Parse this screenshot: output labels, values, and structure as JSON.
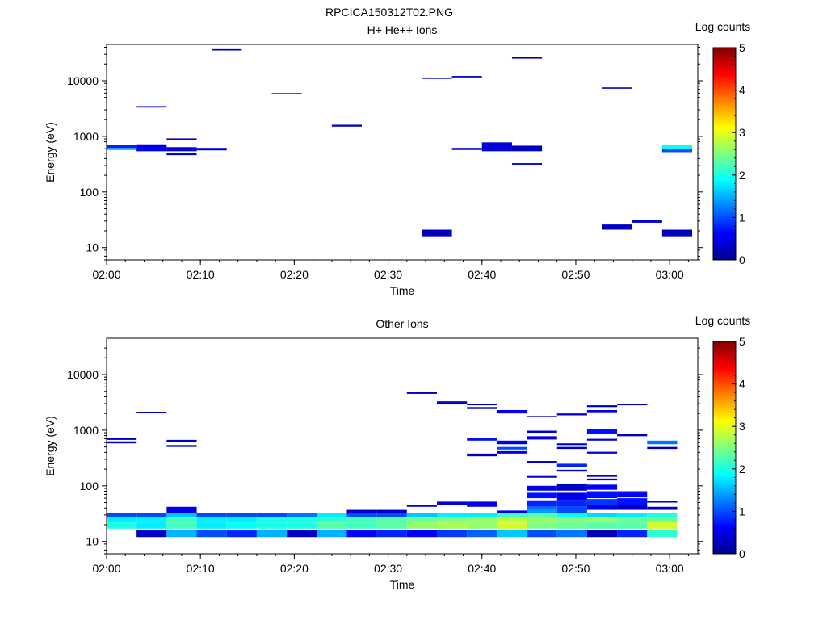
{
  "figure": {
    "title": "RPCICA150312T02.PNG"
  },
  "chart_data": [
    {
      "type": "heatmap",
      "title": "H+ He++ Ions",
      "xlabel": "Time",
      "ylabel": "Energy (eV)",
      "x_ticks": [
        "02:00",
        "02:10",
        "02:20",
        "02:30",
        "02:40",
        "02:50",
        "03:00"
      ],
      "x_range_min": [
        0,
        63
      ],
      "y_scale": "log",
      "y_ticks": [
        "10",
        "100",
        "1000",
        "10000"
      ],
      "y_range": [
        6,
        45000
      ],
      "colorbar": {
        "label": "Log counts",
        "range": [
          0,
          5
        ],
        "ticks": [
          "0",
          "1",
          "2",
          "3",
          "4",
          "5"
        ]
      },
      "cells": [
        [
          0,
          3.2,
          620,
          690,
          0.8
        ],
        [
          0,
          3.2,
          570,
          620,
          1.4
        ],
        [
          3.2,
          6.4,
          3300,
          3500,
          0.3
        ],
        [
          3.2,
          6.4,
          540,
          720,
          0.5
        ],
        [
          6.4,
          9.6,
          860,
          920,
          0.3
        ],
        [
          6.4,
          9.6,
          540,
          640,
          0.4
        ],
        [
          6.4,
          9.6,
          460,
          500,
          0.5
        ],
        [
          9.6,
          12.8,
          560,
          620,
          0.4
        ],
        [
          11.2,
          14.4,
          35000,
          37000,
          0.3
        ],
        [
          17.6,
          20.8,
          5700,
          6000,
          0.3
        ],
        [
          24,
          27.2,
          1500,
          1620,
          0.3
        ],
        [
          33.6,
          36.8,
          10800,
          11400,
          0.3
        ],
        [
          33.6,
          36.8,
          16,
          21,
          0.25
        ],
        [
          36.8,
          40,
          11500,
          12200,
          0.3
        ],
        [
          36.8,
          40,
          570,
          620,
          0.35
        ],
        [
          40,
          43.2,
          540,
          780,
          0.4
        ],
        [
          43.2,
          46.4,
          25000,
          27000,
          0.3
        ],
        [
          43.2,
          46.4,
          540,
          680,
          0.3
        ],
        [
          43.2,
          46.4,
          310,
          330,
          0.5
        ],
        [
          52.8,
          56,
          7200,
          7600,
          0.3
        ],
        [
          52.8,
          56,
          21,
          26,
          0.3
        ],
        [
          56,
          59.2,
          28,
          31,
          0.4
        ],
        [
          59.2,
          62.4,
          600,
          690,
          1.9
        ],
        [
          59.2,
          62.4,
          520,
          600,
          1.0
        ],
        [
          59.2,
          62.4,
          16,
          21,
          0.3
        ]
      ]
    },
    {
      "type": "heatmap",
      "title": "Other Ions",
      "xlabel": "Time",
      "ylabel": "Energy (eV)",
      "x_ticks": [
        "02:00",
        "02:10",
        "02:20",
        "02:30",
        "02:40",
        "02:50",
        "03:00"
      ],
      "x_range_min": [
        0,
        63
      ],
      "y_scale": "log",
      "y_ticks": [
        "10",
        "100",
        "1000",
        "10000"
      ],
      "y_range": [
        6,
        45000
      ],
      "colorbar": {
        "label": "Log counts",
        "range": [
          0,
          5
        ],
        "ticks": [
          "0",
          "1",
          "2",
          "3",
          "4",
          "5"
        ]
      },
      "cells": [
        [
          0,
          3.2,
          27,
          32,
          1.0
        ],
        [
          0,
          3.2,
          22,
          27,
          1.8
        ],
        [
          0,
          3.2,
          17,
          22,
          2.0
        ],
        [
          0,
          3.2,
          670,
          720,
          0.3
        ],
        [
          0,
          3.2,
          580,
          630,
          0.3
        ],
        [
          3.2,
          6.4,
          27,
          32,
          1.0
        ],
        [
          3.2,
          6.4,
          22,
          27,
          1.8
        ],
        [
          3.2,
          6.4,
          17,
          22,
          1.8
        ],
        [
          3.2,
          6.4,
          12,
          16,
          0.3
        ],
        [
          3.2,
          6.4,
          2050,
          2150,
          0.3
        ],
        [
          6.4,
          9.6,
          32,
          42,
          0.5
        ],
        [
          6.4,
          9.6,
          27,
          32,
          1.6
        ],
        [
          6.4,
          9.6,
          22,
          27,
          2.2
        ],
        [
          6.4,
          9.6,
          17,
          22,
          2.2
        ],
        [
          6.4,
          9.6,
          12,
          16,
          1.5
        ],
        [
          6.4,
          9.6,
          620,
          670,
          0.3
        ],
        [
          6.4,
          9.6,
          500,
          540,
          0.3
        ],
        [
          9.6,
          12.8,
          27,
          32,
          1.0
        ],
        [
          9.6,
          12.8,
          22,
          27,
          1.8
        ],
        [
          9.6,
          12.8,
          17,
          22,
          1.8
        ],
        [
          9.6,
          12.8,
          12,
          16,
          1.0
        ],
        [
          12.8,
          16,
          27,
          32,
          1.0
        ],
        [
          12.8,
          16,
          22,
          27,
          1.8
        ],
        [
          12.8,
          16,
          17,
          22,
          1.9
        ],
        [
          12.8,
          16,
          12,
          16,
          0.8
        ],
        [
          16,
          19.2,
          27,
          32,
          1.0
        ],
        [
          16,
          19.2,
          22,
          27,
          2.0
        ],
        [
          16,
          19.2,
          17,
          22,
          2.0
        ],
        [
          16,
          19.2,
          12,
          16,
          1.5
        ],
        [
          19.2,
          22.4,
          27,
          32,
          1.2
        ],
        [
          19.2,
          22.4,
          22,
          27,
          2.0
        ],
        [
          19.2,
          22.4,
          17,
          22,
          2.0
        ],
        [
          19.2,
          22.4,
          12,
          16,
          0.3
        ],
        [
          22.4,
          25.6,
          27,
          32,
          1.8
        ],
        [
          22.4,
          25.6,
          22,
          27,
          2.1
        ],
        [
          22.4,
          25.6,
          17,
          22,
          2.3
        ],
        [
          22.4,
          25.6,
          12,
          16,
          1.5
        ],
        [
          25.6,
          28.8,
          32,
          37,
          0.3
        ],
        [
          25.6,
          28.8,
          27,
          32,
          1.0
        ],
        [
          25.6,
          28.8,
          22,
          27,
          2.2
        ],
        [
          25.6,
          28.8,
          17,
          22,
          2.2
        ],
        [
          25.6,
          28.8,
          12,
          16,
          0.6
        ],
        [
          28.8,
          32,
          32,
          37,
          0.3
        ],
        [
          28.8,
          32,
          27,
          32,
          1.0
        ],
        [
          28.8,
          32,
          22,
          27,
          2.3
        ],
        [
          28.8,
          32,
          17,
          22,
          2.3
        ],
        [
          28.8,
          32,
          12,
          16,
          0.8
        ],
        [
          32,
          35.2,
          42,
          46,
          0.4
        ],
        [
          32,
          35.2,
          27,
          32,
          1.6
        ],
        [
          32,
          35.2,
          22,
          27,
          2.4
        ],
        [
          32,
          35.2,
          17,
          22,
          2.6
        ],
        [
          32,
          35.2,
          12,
          16,
          0.6
        ],
        [
          32,
          35.2,
          4500,
          4800,
          0.3
        ],
        [
          35.2,
          38.4,
          46,
          52,
          0.4
        ],
        [
          35.2,
          38.4,
          27,
          32,
          1.8
        ],
        [
          35.2,
          38.4,
          22,
          27,
          2.5
        ],
        [
          35.2,
          38.4,
          17,
          22,
          2.7
        ],
        [
          35.2,
          38.4,
          12,
          16,
          0.9
        ],
        [
          35.2,
          38.4,
          2900,
          3300,
          0.3
        ],
        [
          38.4,
          41.6,
          42,
          52,
          0.5
        ],
        [
          38.4,
          41.6,
          27,
          32,
          1.8
        ],
        [
          38.4,
          41.6,
          22,
          27,
          2.6
        ],
        [
          38.4,
          41.6,
          17,
          22,
          2.6
        ],
        [
          38.4,
          41.6,
          12,
          16,
          1.1
        ],
        [
          38.4,
          41.6,
          2800,
          3000,
          0.3
        ],
        [
          38.4,
          41.6,
          2400,
          2600,
          0.3
        ],
        [
          38.4,
          41.6,
          650,
          720,
          0.7
        ],
        [
          38.4,
          41.6,
          340,
          380,
          0.3
        ],
        [
          41.6,
          44.8,
          32,
          36,
          0.6
        ],
        [
          41.6,
          44.8,
          27,
          32,
          2.2
        ],
        [
          41.6,
          44.8,
          22,
          27,
          2.8
        ],
        [
          41.6,
          44.8,
          17,
          22,
          2.9
        ],
        [
          41.6,
          44.8,
          12,
          16,
          1.6
        ],
        [
          41.6,
          44.8,
          2000,
          2300,
          0.6
        ],
        [
          41.6,
          44.8,
          560,
          650,
          0.5
        ],
        [
          41.6,
          44.8,
          450,
          500,
          1.0
        ],
        [
          41.6,
          44.8,
          380,
          420,
          0.5
        ],
        [
          44.8,
          48,
          82,
          100,
          0.5
        ],
        [
          44.8,
          48,
          60,
          75,
          0.7
        ],
        [
          44.8,
          48,
          42,
          55,
          0.8
        ],
        [
          44.8,
          48,
          37,
          42,
          1.2
        ],
        [
          44.8,
          48,
          32,
          37,
          1.4
        ],
        [
          44.8,
          48,
          27,
          32,
          2.3
        ],
        [
          44.8,
          48,
          22,
          27,
          2.6
        ],
        [
          44.8,
          48,
          17,
          22,
          2.5
        ],
        [
          44.8,
          48,
          12,
          16,
          1.0
        ],
        [
          44.8,
          48,
          1700,
          1800,
          0.3
        ],
        [
          44.8,
          48,
          900,
          980,
          0.4
        ],
        [
          44.8,
          48,
          680,
          780,
          0.4
        ],
        [
          44.8,
          48,
          260,
          280,
          0.4
        ],
        [
          44.8,
          48,
          140,
          150,
          0.4
        ],
        [
          48,
          51.2,
          82,
          110,
          0.3
        ],
        [
          48,
          51.2,
          55,
          75,
          0.5
        ],
        [
          48,
          51.2,
          42,
          55,
          0.8
        ],
        [
          48,
          51.2,
          32,
          42,
          1.0
        ],
        [
          48,
          51.2,
          27,
          32,
          1.9
        ],
        [
          48,
          51.2,
          22,
          27,
          2.5
        ],
        [
          48,
          51.2,
          17,
          22,
          2.4
        ],
        [
          48,
          51.2,
          12,
          16,
          1.2
        ],
        [
          48,
          51.2,
          1850,
          2000,
          0.3
        ],
        [
          48,
          51.2,
          540,
          580,
          0.4
        ],
        [
          48,
          51.2,
          460,
          500,
          0.3
        ],
        [
          48,
          51.2,
          220,
          250,
          0.8
        ],
        [
          48,
          51.2,
          180,
          195,
          0.4
        ],
        [
          51.2,
          54.4,
          85,
          105,
          0.6
        ],
        [
          51.2,
          54.4,
          60,
          80,
          0.7
        ],
        [
          51.2,
          54.4,
          45,
          58,
          0.9
        ],
        [
          51.2,
          54.4,
          37,
          45,
          0.5
        ],
        [
          51.2,
          54.4,
          27,
          32,
          1.7
        ],
        [
          51.2,
          54.4,
          22,
          27,
          2.6
        ],
        [
          51.2,
          54.4,
          17,
          22,
          2.3
        ],
        [
          51.2,
          54.4,
          12,
          16,
          0.2
        ],
        [
          51.2,
          54.4,
          2600,
          2800,
          0.3
        ],
        [
          51.2,
          54.4,
          2100,
          2300,
          0.5
        ],
        [
          51.2,
          54.4,
          870,
          1050,
          0.7
        ],
        [
          51.2,
          54.4,
          650,
          700,
          0.4
        ],
        [
          51.2,
          54.4,
          380,
          410,
          0.4
        ],
        [
          51.2,
          54.4,
          145,
          155,
          0.4
        ],
        [
          51.2,
          54.4,
          125,
          135,
          0.4
        ],
        [
          54.4,
          57.6,
          62,
          75,
          0.6
        ],
        [
          54.4,
          57.6,
          45,
          60,
          0.7
        ],
        [
          54.4,
          57.6,
          37,
          45,
          0.3
        ],
        [
          54.4,
          57.6,
          27,
          32,
          1.8
        ],
        [
          54.4,
          57.6,
          22,
          27,
          2.4
        ],
        [
          54.4,
          57.6,
          17,
          22,
          2.3
        ],
        [
          54.4,
          57.6,
          12,
          16,
          0.8
        ],
        [
          54.4,
          57.6,
          2800,
          3000,
          0.3
        ],
        [
          54.4,
          57.6,
          780,
          850,
          0.3
        ],
        [
          54.4,
          57.6,
          75,
          80,
          0.4
        ],
        [
          57.6,
          60.8,
          50,
          54,
          0.4
        ],
        [
          57.6,
          60.8,
          37,
          42,
          0.3
        ],
        [
          57.6,
          60.8,
          27,
          32,
          2.0
        ],
        [
          57.6,
          60.8,
          22,
          27,
          2.4
        ],
        [
          57.6,
          60.8,
          17,
          22,
          2.9
        ],
        [
          57.6,
          60.8,
          12,
          16,
          2.1
        ],
        [
          57.6,
          60.8,
          560,
          650,
          1.2
        ],
        [
          57.6,
          60.8,
          460,
          500,
          0.3
        ]
      ]
    }
  ]
}
